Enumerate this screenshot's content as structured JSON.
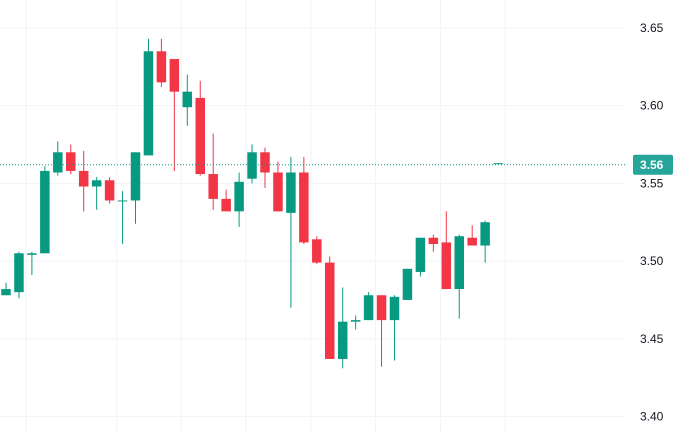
{
  "chart_data": {
    "type": "candlestick",
    "title": "",
    "xlabel": "",
    "ylabel": "",
    "ylim": [
      3.39,
      3.668
    ],
    "y_ticks": [
      {
        "value": 3.4,
        "label": "3.40"
      },
      {
        "value": 3.45,
        "label": "3.45"
      },
      {
        "value": 3.5,
        "label": "3.50"
      },
      {
        "value": 3.55,
        "label": "3.55"
      },
      {
        "value": 3.6,
        "label": "3.60"
      },
      {
        "value": 3.65,
        "label": "3.65"
      }
    ],
    "grid": true,
    "current_price": {
      "value": 3.562,
      "label": "3.56",
      "color": "#26a69a"
    },
    "colors": {
      "up": "#089981",
      "down": "#f23645",
      "grid": "#f0f3fa",
      "axis_text": "#131722",
      "price_line": "#089981"
    },
    "candles": [
      {
        "o": 3.478,
        "h": 3.486,
        "l": 3.478,
        "c": 3.482
      },
      {
        "o": 3.48,
        "h": 3.506,
        "l": 3.476,
        "c": 3.505
      },
      {
        "o": 3.504,
        "h": 3.506,
        "l": 3.491,
        "c": 3.505
      },
      {
        "o": 3.505,
        "h": 3.561,
        "l": 3.505,
        "c": 3.558
      },
      {
        "o": 3.557,
        "h": 3.577,
        "l": 3.555,
        "c": 3.57
      },
      {
        "o": 3.57,
        "h": 3.575,
        "l": 3.556,
        "c": 3.558
      },
      {
        "o": 3.558,
        "h": 3.571,
        "l": 3.532,
        "c": 3.548
      },
      {
        "o": 3.548,
        "h": 3.554,
        "l": 3.533,
        "c": 3.552
      },
      {
        "o": 3.552,
        "h": 3.554,
        "l": 3.537,
        "c": 3.539
      },
      {
        "o": 3.539,
        "h": 3.545,
        "l": 3.511,
        "c": 3.539
      },
      {
        "o": 3.539,
        "h": 3.57,
        "l": 3.524,
        "c": 3.57
      },
      {
        "o": 3.568,
        "h": 3.643,
        "l": 3.568,
        "c": 3.635
      },
      {
        "o": 3.635,
        "h": 3.643,
        "l": 3.612,
        "c": 3.615
      },
      {
        "o": 3.63,
        "h": 3.63,
        "l": 3.558,
        "c": 3.609
      },
      {
        "o": 3.599,
        "h": 3.62,
        "l": 3.587,
        "c": 3.609
      },
      {
        "o": 3.605,
        "h": 3.616,
        "l": 3.555,
        "c": 3.556
      },
      {
        "o": 3.556,
        "h": 3.582,
        "l": 3.533,
        "c": 3.54
      },
      {
        "o": 3.54,
        "h": 3.546,
        "l": 3.532,
        "c": 3.532
      },
      {
        "o": 3.532,
        "h": 3.557,
        "l": 3.522,
        "c": 3.551
      },
      {
        "o": 3.553,
        "h": 3.575,
        "l": 3.55,
        "c": 3.57
      },
      {
        "o": 3.57,
        "h": 3.573,
        "l": 3.547,
        "c": 3.557
      },
      {
        "o": 3.557,
        "h": 3.564,
        "l": 3.532,
        "c": 3.532
      },
      {
        "o": 3.531,
        "h": 3.567,
        "l": 3.47,
        "c": 3.557
      },
      {
        "o": 3.557,
        "h": 3.567,
        "l": 3.511,
        "c": 3.512
      },
      {
        "o": 3.514,
        "h": 3.516,
        "l": 3.498,
        "c": 3.499
      },
      {
        "o": 3.499,
        "h": 3.503,
        "l": 3.437,
        "c": 3.437
      },
      {
        "o": 3.437,
        "h": 3.483,
        "l": 3.431,
        "c": 3.461
      },
      {
        "o": 3.461,
        "h": 3.465,
        "l": 3.456,
        "c": 3.462
      },
      {
        "o": 3.462,
        "h": 3.48,
        "l": 3.462,
        "c": 3.478
      },
      {
        "o": 3.478,
        "h": 3.478,
        "l": 3.432,
        "c": 3.462
      },
      {
        "o": 3.462,
        "h": 3.478,
        "l": 3.436,
        "c": 3.477
      },
      {
        "o": 3.475,
        "h": 3.495,
        "l": 3.475,
        "c": 3.495
      },
      {
        "o": 3.493,
        "h": 3.515,
        "l": 3.49,
        "c": 3.515
      },
      {
        "o": 3.515,
        "h": 3.517,
        "l": 3.506,
        "c": 3.511
      },
      {
        "o": 3.512,
        "h": 3.532,
        "l": 3.482,
        "c": 3.482
      },
      {
        "o": 3.482,
        "h": 3.517,
        "l": 3.463,
        "c": 3.516
      },
      {
        "o": 3.515,
        "h": 3.523,
        "l": 3.51,
        "c": 3.51
      },
      {
        "o": 3.51,
        "h": 3.526,
        "l": 3.499,
        "c": 3.525
      },
      {
        "o": 3.563,
        "h": 3.563,
        "l": 3.563,
        "c": 3.563
      }
    ]
  }
}
